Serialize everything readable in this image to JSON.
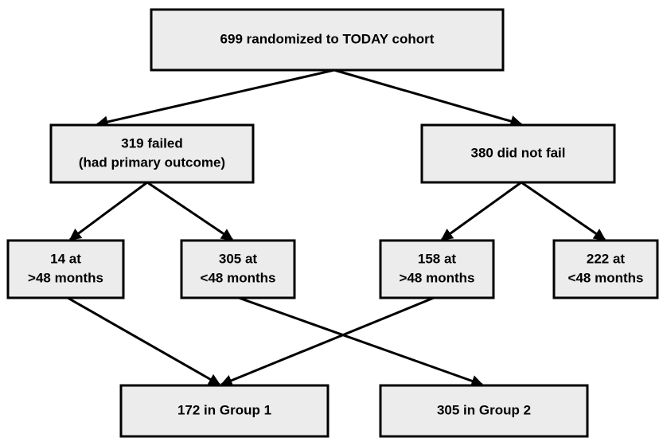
{
  "nodes": [
    {
      "lines": [
        "699 randomized to TODAY cohort"
      ]
    },
    {
      "lines": [
        "319 failed",
        "(had primary outcome)"
      ]
    },
    {
      "lines": [
        "380 did not fail"
      ]
    },
    {
      "lines": [
        "14 at",
        ">48 months"
      ]
    },
    {
      "lines": [
        "305 at",
        "<48 months"
      ]
    },
    {
      "lines": [
        "158 at",
        ">48 months"
      ]
    },
    {
      "lines": [
        "222 at",
        "<48 months"
      ]
    },
    {
      "lines": [
        "172 in Group 1"
      ]
    },
    {
      "lines": [
        "305 in Group 2"
      ]
    }
  ]
}
